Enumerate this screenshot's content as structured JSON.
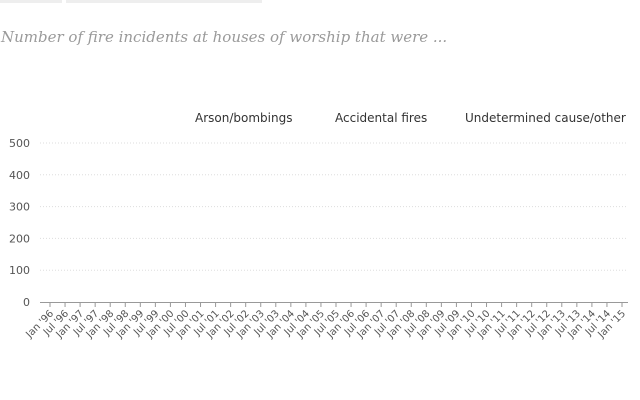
{
  "chart_data": {
    "type": "line",
    "title": "",
    "subtitle": "Number of fire incidents at houses of worship that were ...",
    "xlabel": "",
    "ylabel": "",
    "ylim": [
      0,
      500
    ],
    "yticks": [
      0,
      100,
      200,
      300,
      400,
      500
    ],
    "grid": true,
    "legend_position": "top",
    "series": [
      {
        "name": "Arson/bombings",
        "values": []
      },
      {
        "name": "Accidental fires",
        "values": []
      },
      {
        "name": "Undetermined cause/other",
        "values": []
      }
    ],
    "xticks": [
      "Jan '96",
      "Jul '96",
      "Jan '97",
      "Jul '97",
      "Jan '98",
      "Jul '98",
      "Jan '99",
      "Jul '99",
      "Jan '00",
      "Jul '00",
      "Jan '01",
      "Jul '01",
      "Jan '02",
      "Jul '02",
      "Jan '03",
      "Jul '03",
      "Jan '04",
      "Jul '04",
      "Jan '05",
      "Jul '05",
      "Jan '06",
      "Jul '06",
      "Jan '07",
      "Jul '07",
      "Jan '08",
      "Jul '08",
      "Jan '09",
      "Jul '09",
      "Jan '10",
      "Jul '10",
      "Jan '11",
      "Jul '11",
      "Jan '12",
      "Jul '12",
      "Jan '13",
      "Jul '13",
      "Jan '14",
      "Jul '14",
      "Jan '15"
    ]
  },
  "colors": {
    "axis": "#999999",
    "grid": "#dddddd",
    "tick_text": "#555555"
  }
}
